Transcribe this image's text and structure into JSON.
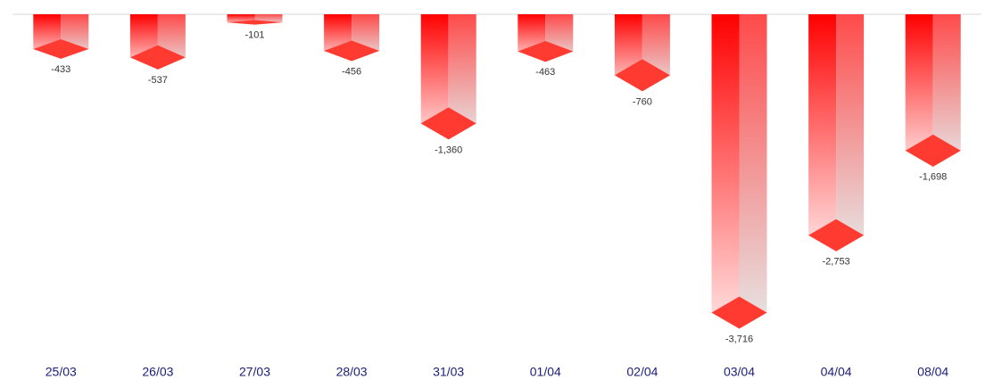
{
  "chart_data": {
    "type": "bar3d",
    "categories": [
      "25/03",
      "26/03",
      "27/03",
      "28/03",
      "31/03",
      "01/04",
      "02/04",
      "03/04",
      "04/04",
      "08/04"
    ],
    "values": [
      -433,
      -537,
      -101,
      -456,
      -1360,
      -463,
      -760,
      -3716,
      -2753,
      -1698
    ],
    "value_labels": [
      "-433",
      "-537",
      "-101",
      "-456",
      "-1,360",
      "-463",
      "-760",
      "-3,716",
      "-2,753",
      "-1,698"
    ],
    "color": "#ff0000",
    "ylim": [
      -4000,
      0
    ]
  }
}
